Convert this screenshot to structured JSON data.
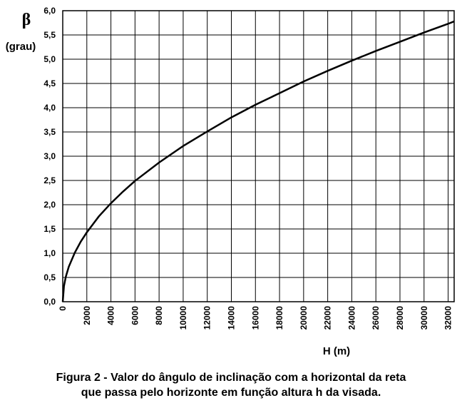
{
  "chart_data": {
    "type": "line",
    "ylabel_symbol": "β",
    "ylabel_unit": "(grau)",
    "xlabel": "H (m)",
    "xlim": [
      0,
      32500
    ],
    "ylim": [
      0,
      6.0
    ],
    "grid": true,
    "y_ticks": [
      "0,0",
      "0,5",
      "1,0",
      "1,5",
      "2,0",
      "2,5",
      "3,0",
      "3,5",
      "4,0",
      "4,5",
      "5,0",
      "5,5",
      "6,0"
    ],
    "x_ticks": [
      "0",
      "2000",
      "4000",
      "6000",
      "8000",
      "10000",
      "12000",
      "14000",
      "16000",
      "18000",
      "20000",
      "22000",
      "24000",
      "26000",
      "28000",
      "30000",
      "32000"
    ],
    "series": [
      {
        "x": [
          0,
          100,
          250,
          500,
          1000,
          1500,
          2000,
          3000,
          4000,
          5000,
          6000,
          8000,
          10000,
          12000,
          14000,
          16000,
          18000,
          20000,
          22000,
          24000,
          26000,
          28000,
          30000,
          32000,
          32500
        ],
        "y": [
          0,
          0.32,
          0.51,
          0.72,
          1.01,
          1.24,
          1.43,
          1.76,
          2.03,
          2.27,
          2.49,
          2.87,
          3.21,
          3.51,
          3.8,
          4.06,
          4.3,
          4.54,
          4.76,
          4.97,
          5.17,
          5.36,
          5.55,
          5.73,
          5.78
        ]
      }
    ]
  },
  "caption": {
    "line1": "Figura 2 -  Valor do ângulo de inclinação com a horizontal da reta",
    "line2": "que passa pelo horizonte em função altura h da visada."
  }
}
